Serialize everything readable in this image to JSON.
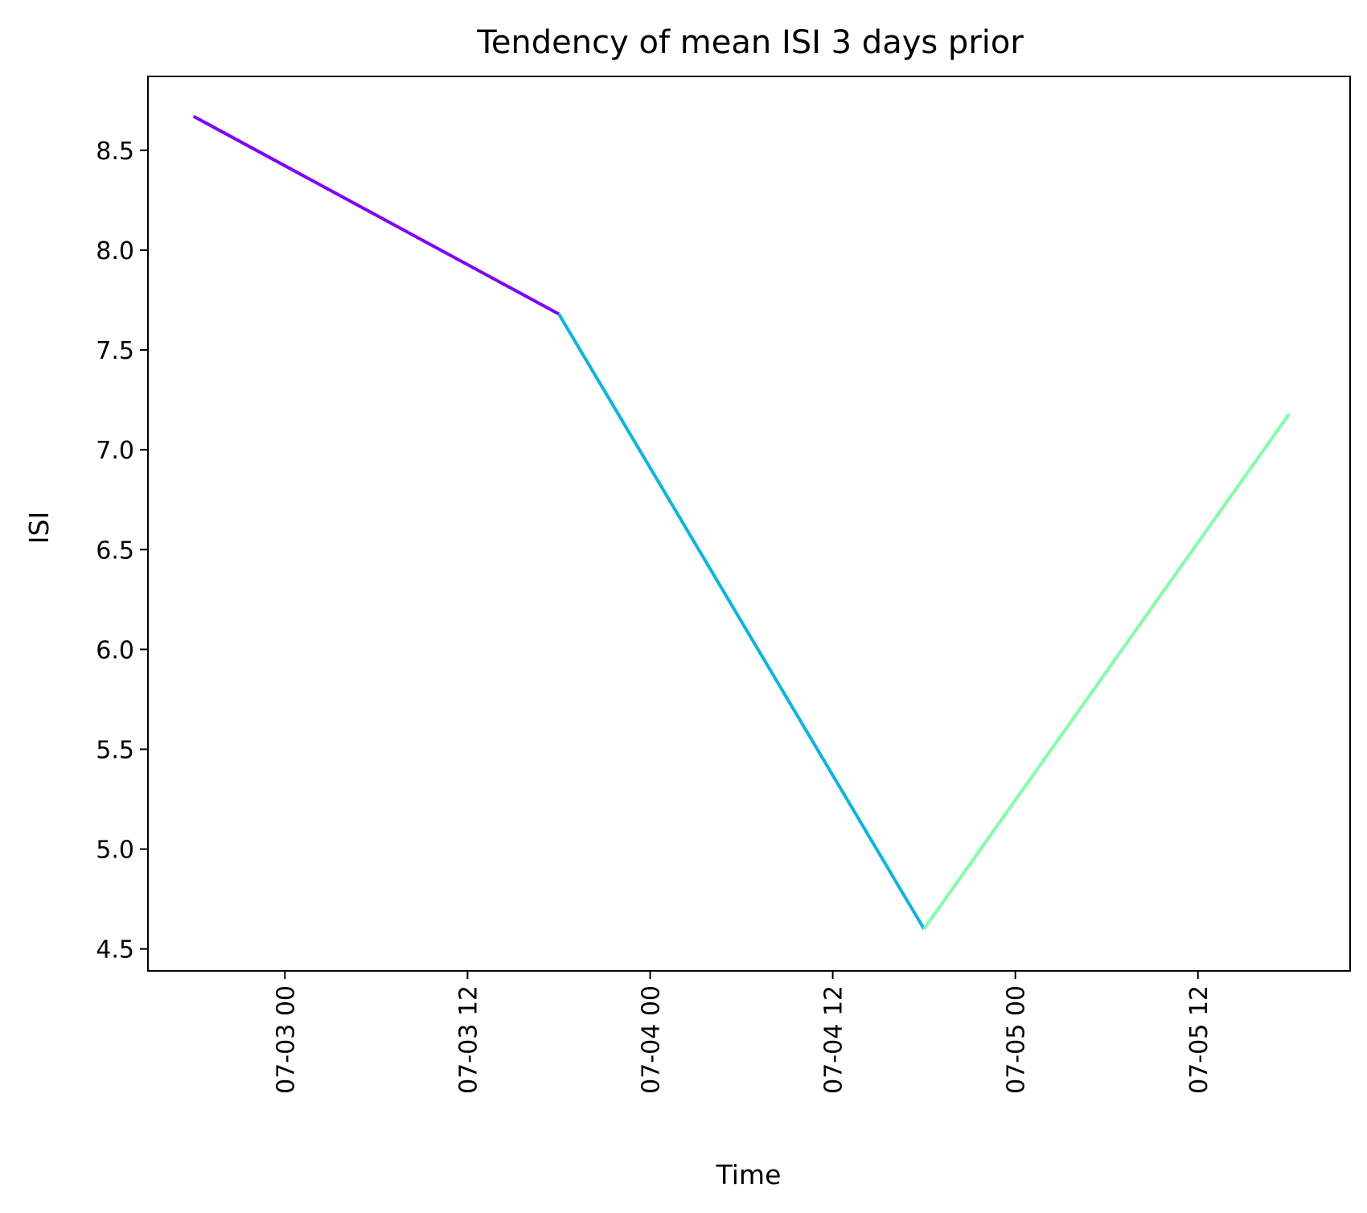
{
  "chart_data": {
    "type": "line",
    "title": "Tendency of mean ISI 3 days prior",
    "xlabel": "Time",
    "ylabel": "ISI",
    "x_ticks": [
      "07-03 00",
      "07-03 12",
      "07-04 00",
      "07-04 12",
      "07-05 00",
      "07-05 12"
    ],
    "y_ticks": [
      "4.5",
      "5.0",
      "5.5",
      "6.0",
      "6.5",
      "7.0",
      "7.5",
      "8.0",
      "8.5"
    ],
    "xlim": [
      "07-02 15:00",
      "07-05 22:00"
    ],
    "ylim": [
      4.39,
      8.87
    ],
    "grid": false,
    "legend": "none",
    "segments": [
      {
        "x": [
          "07-02 18:00",
          "07-03 18:00"
        ],
        "y": [
          8.67,
          7.68
        ],
        "color": "#8000ff"
      },
      {
        "x": [
          "07-03 18:00",
          "07-04 18:00"
        ],
        "y": [
          7.68,
          4.6
        ],
        "color": "#06b6e6"
      },
      {
        "x": [
          "07-04 18:00",
          "07-05 18:00"
        ],
        "y": [
          4.6,
          7.18
        ],
        "color": "#7fffa8"
      }
    ]
  }
}
